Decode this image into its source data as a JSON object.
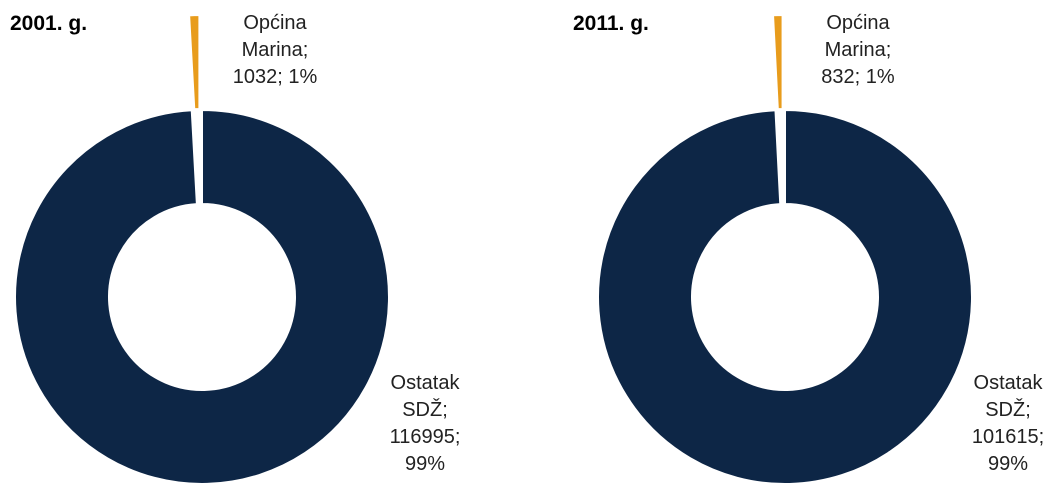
{
  "chart_data": [
    {
      "type": "donut",
      "title": "2001. g.",
      "categories": [
        "Općina Marina;",
        "Ostatak SDŽ;"
      ],
      "values": [
        1032,
        116995
      ],
      "value_labels": [
        "1032; 1%",
        "116995; 99%"
      ],
      "colors": [
        "#e89c1c",
        "#0d2646"
      ]
    },
    {
      "type": "donut",
      "title": "2011. g.",
      "categories": [
        "Općina Marina;",
        "Ostatak SDŽ;"
      ],
      "values": [
        832,
        101615
      ],
      "value_labels": [
        "832; 1%",
        "101615; 99%"
      ],
      "colors": [
        "#e89c1c",
        "#0d2646"
      ]
    }
  ]
}
